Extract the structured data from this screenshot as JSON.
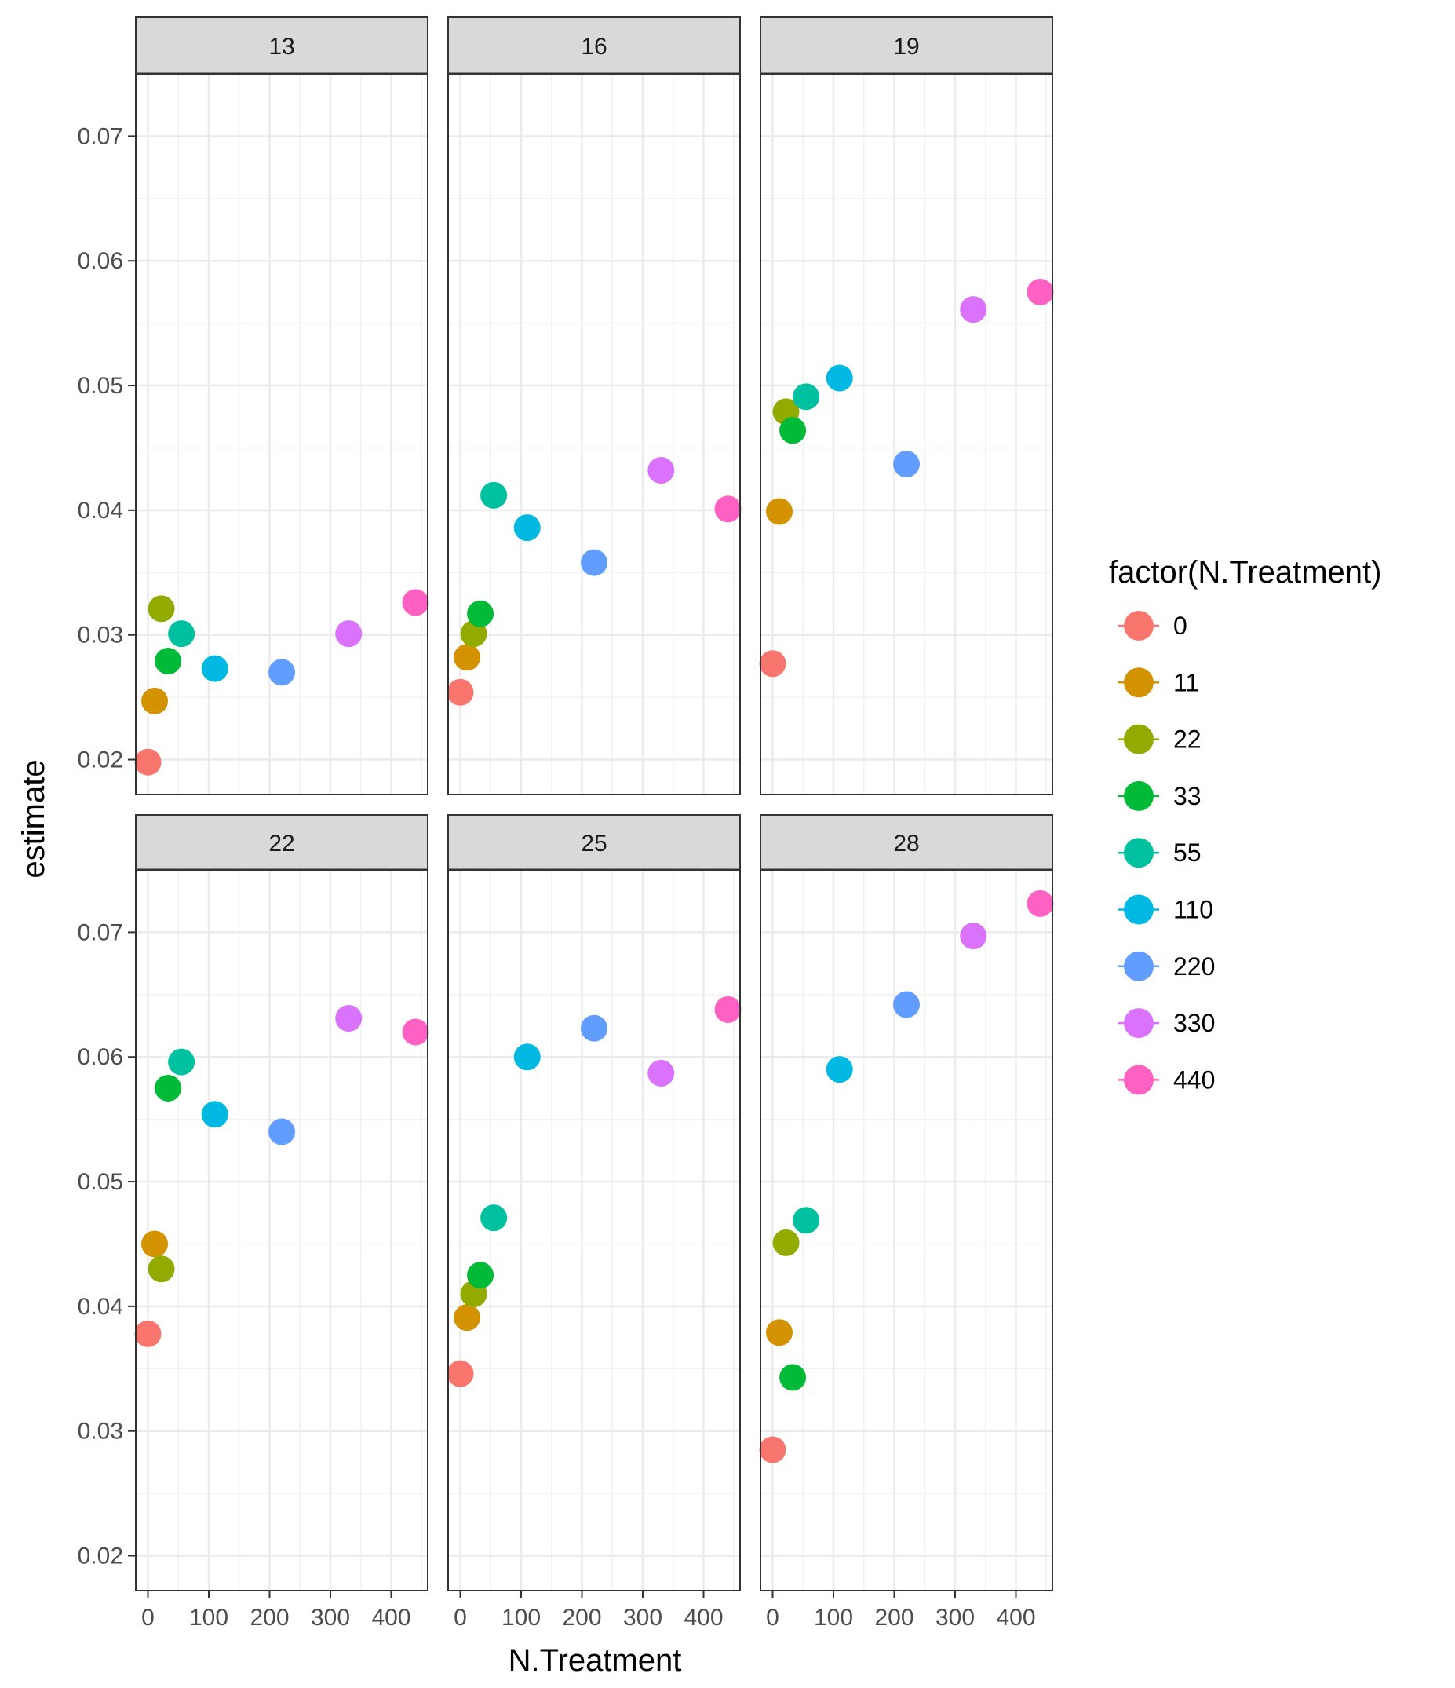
{
  "chart_data": {
    "type": "scatter",
    "facet_variable_title": "",
    "xlabel": "N.Treatment",
    "ylabel": "estimate",
    "xlim": [
      -20,
      460
    ],
    "ylim": [
      0.0172,
      0.075
    ],
    "xticks": [
      0,
      100,
      200,
      300,
      400
    ],
    "yticks": [
      0.02,
      0.03,
      0.04,
      0.05,
      0.06,
      0.07
    ],
    "xtick_labels": [
      "0",
      "100",
      "200",
      "300",
      "400"
    ],
    "ytick_labels": [
      "0.02",
      "0.03",
      "0.04",
      "0.05",
      "0.06",
      "0.07"
    ],
    "grid": true,
    "legend": {
      "title": "factor(N.Treatment)",
      "position": "right",
      "entries": [
        {
          "label": "0",
          "color": "#F8766D"
        },
        {
          "label": "11",
          "color": "#D39200"
        },
        {
          "label": "22",
          "color": "#93AA00"
        },
        {
          "label": "33",
          "color": "#00BA38"
        },
        {
          "label": "55",
          "color": "#00C19F"
        },
        {
          "label": "110",
          "color": "#00B9E3"
        },
        {
          "label": "220",
          "color": "#619CFF"
        },
        {
          "label": "330",
          "color": "#DB72FB"
        },
        {
          "label": "440",
          "color": "#FF61C3"
        }
      ]
    },
    "x": [
      0,
      11,
      22,
      33,
      55,
      110,
      220,
      330,
      440
    ],
    "facets": [
      {
        "label": "13",
        "values": [
          0.0198,
          0.0247,
          0.0321,
          0.0279,
          0.0301,
          0.0273,
          0.027,
          0.0301,
          0.0326
        ]
      },
      {
        "label": "16",
        "values": [
          0.0254,
          0.0282,
          0.0301,
          0.0317,
          0.0412,
          0.0386,
          0.0358,
          0.0432,
          0.0401
        ]
      },
      {
        "label": "19",
        "values": [
          0.0277,
          0.0399,
          0.0479,
          0.0464,
          0.0491,
          0.0506,
          0.0437,
          0.0561,
          0.0575
        ]
      },
      {
        "label": "22",
        "values": [
          0.0378,
          0.045,
          0.043,
          0.0575,
          0.0596,
          0.0554,
          0.054,
          0.0631,
          0.062
        ]
      },
      {
        "label": "25",
        "values": [
          0.0346,
          0.0391,
          0.041,
          0.0425,
          0.0471,
          0.06,
          0.0623,
          0.0587,
          0.0638
        ]
      },
      {
        "label": "28",
        "values": [
          0.0285,
          0.0379,
          0.0451,
          0.0343,
          0.0469,
          0.059,
          0.0642,
          0.0697,
          0.0723
        ]
      }
    ]
  }
}
